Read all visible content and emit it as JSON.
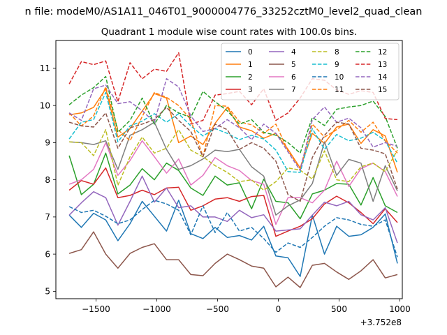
{
  "chart_data": {
    "type": "line",
    "suptitle": "n file: modeM0/AS1A11_046T01_9000004776_33252cztM0_level2_quad_clean",
    "title": "Quadrant 1 module wise count rates with 100.0s bins.",
    "xlabel": "",
    "ylabel": "",
    "x_offset_label": "+3.752e8",
    "xlim": [
      -1830,
      1020
    ],
    "ylim": [
      4.8,
      11.75
    ],
    "xticks": [
      -1500,
      -1000,
      -500,
      0,
      500,
      1000
    ],
    "xtick_labels": [
      "−1500",
      "−1000",
      "−500",
      "0",
      "500",
      "1000"
    ],
    "yticks": [
      5,
      6,
      7,
      8,
      9,
      10,
      11
    ],
    "ytick_labels": [
      "5",
      "6",
      "7",
      "8",
      "9",
      "10",
      "11"
    ],
    "grid": false,
    "legend": {
      "position": "top-right",
      "columns": 4
    },
    "x": [
      -1720,
      -1620,
      -1520,
      -1420,
      -1320,
      -1220,
      -1120,
      -1020,
      -920,
      -820,
      -720,
      -620,
      -520,
      -420,
      -320,
      -220,
      -120,
      -20,
      80,
      180,
      280,
      380,
      480,
      580,
      680,
      780,
      880,
      980
    ],
    "series": [
      {
        "name": "0",
        "color": "#1f77b4",
        "dash": "solid",
        "values": [
          7.05,
          6.72,
          7.1,
          6.92,
          6.36,
          6.82,
          7.42,
          7.02,
          6.62,
          7.45,
          6.55,
          6.42,
          6.72,
          6.45,
          6.5,
          6.38,
          6.75,
          5.95,
          5.9,
          5.4,
          7.05,
          6.0,
          6.75,
          6.48,
          6.52,
          6.72,
          7.08,
          5.75
        ]
      },
      {
        "name": "1",
        "color": "#ff7f0e",
        "dash": "solid",
        "values": [
          9.75,
          9.8,
          9.95,
          10.45,
          9.15,
          9.38,
          9.85,
          10.32,
          10.2,
          9.0,
          9.18,
          8.95,
          9.52,
          9.95,
          9.42,
          9.32,
          9.12,
          9.25,
          8.82,
          8.32,
          9.25,
          8.98,
          9.42,
          9.5,
          8.98,
          9.35,
          9.18,
          8.2
        ]
      },
      {
        "name": "2",
        "color": "#2ca02c",
        "dash": "solid",
        "values": [
          8.65,
          7.6,
          7.88,
          8.72,
          7.62,
          7.86,
          8.3,
          8.0,
          8.45,
          8.25,
          7.78,
          7.58,
          8.1,
          7.86,
          7.92,
          7.22,
          8.02,
          7.42,
          7.38,
          6.95,
          7.62,
          7.72,
          7.9,
          7.88,
          7.32,
          8.06,
          7.3,
          7.12
        ]
      },
      {
        "name": "3",
        "color": "#d62728",
        "dash": "solid",
        "values": [
          7.72,
          7.98,
          7.88,
          8.32,
          7.52,
          7.58,
          7.72,
          7.6,
          7.78,
          7.8,
          7.18,
          7.3,
          7.48,
          7.52,
          7.42,
          7.55,
          7.58,
          6.48,
          6.62,
          6.75,
          6.95,
          7.35,
          7.56,
          7.38,
          7.12,
          6.82,
          7.22,
          6.85
        ]
      },
      {
        "name": "4",
        "color": "#9467bd",
        "dash": "solid",
        "values": [
          7.05,
          7.38,
          7.68,
          7.52,
          6.78,
          7.42,
          8.1,
          7.4,
          7.78,
          7.25,
          7.3,
          7.0,
          7.0,
          6.88,
          7.18,
          6.98,
          7.06,
          6.62,
          6.65,
          6.68,
          7.05,
          7.4,
          7.3,
          7.42,
          7.06,
          6.92,
          7.25,
          6.3
        ]
      },
      {
        "name": "5",
        "color": "#8c564b",
        "dash": "solid",
        "values": [
          6.02,
          6.12,
          6.6,
          6.0,
          5.62,
          6.02,
          6.18,
          6.28,
          5.85,
          5.85,
          5.45,
          5.42,
          5.75,
          6.0,
          5.85,
          5.68,
          5.62,
          5.12,
          5.38,
          5.1,
          5.7,
          5.75,
          5.52,
          5.32,
          5.55,
          5.85,
          5.36,
          5.45
        ]
      },
      {
        "name": "6",
        "color": "#e377c2",
        "dash": "solid",
        "values": [
          7.88,
          8.0,
          8.28,
          9.0,
          8.12,
          8.52,
          9.05,
          8.62,
          8.18,
          8.56,
          7.86,
          8.12,
          8.6,
          8.38,
          8.25,
          7.98,
          7.88,
          6.8,
          7.52,
          7.52,
          7.38,
          7.72,
          8.5,
          7.82,
          8.3,
          8.45,
          8.22,
          7.55
        ]
      },
      {
        "name": "7",
        "color": "#7f7f7f",
        "dash": "solid",
        "values": [
          9.02,
          9.0,
          8.95,
          9.05,
          8.28,
          9.2,
          9.35,
          9.55,
          8.82,
          8.28,
          8.38,
          8.56,
          8.8,
          8.76,
          8.82,
          8.35,
          8.1,
          7.05,
          7.3,
          7.46,
          7.9,
          9.02,
          8.12,
          8.55,
          8.45,
          7.42,
          8.38,
          7.7
        ]
      },
      {
        "name": "8",
        "color": "#bcbd22",
        "dash": "dashed",
        "values": [
          9.02,
          9.0,
          8.65,
          9.35,
          7.85,
          8.62,
          9.15,
          8.72,
          8.85,
          9.35,
          8.8,
          8.62,
          8.38,
          8.2,
          7.95,
          8.0,
          7.72,
          7.95,
          8.32,
          8.26,
          8.02,
          8.78,
          8.0,
          7.95,
          8.35,
          8.45,
          8.22,
          8.8
        ]
      },
      {
        "name": "9",
        "color": "#17becf",
        "dash": "dashed",
        "values": [
          9.1,
          9.55,
          9.62,
          10.35,
          9.02,
          9.45,
          9.58,
          9.78,
          9.55,
          9.78,
          9.45,
          9.18,
          9.38,
          9.25,
          9.08,
          9.2,
          9.1,
          8.8,
          8.22,
          8.2,
          9.38,
          8.82,
          9.22,
          9.05,
          9.12,
          9.28,
          9.05,
          8.45
        ]
      },
      {
        "name": "10",
        "color": "#1f77b4",
        "dash": "dashed",
        "values": [
          7.28,
          7.12,
          7.18,
          7.02,
          6.82,
          6.92,
          7.2,
          7.45,
          7.35,
          7.18,
          6.52,
          7.3,
          6.58,
          7.12,
          6.62,
          6.72,
          6.42,
          6.05,
          6.3,
          6.18,
          6.45,
          6.75,
          6.98,
          6.92,
          6.8,
          6.75,
          6.92,
          5.92
        ]
      },
      {
        "name": "11",
        "color": "#ff7f0e",
        "dash": "dashed",
        "values": [
          9.8,
          9.45,
          9.72,
          10.5,
          9.35,
          9.05,
          9.7,
          10.35,
          10.22,
          10.0,
          9.62,
          8.62,
          10.0,
          9.98,
          9.56,
          9.48,
          9.25,
          9.5,
          8.78,
          8.3,
          9.5,
          9.15,
          9.35,
          9.6,
          9.28,
          9.55,
          9.05,
          8.72
        ]
      },
      {
        "name": "12",
        "color": "#2ca02c",
        "dash": "dashed",
        "values": [
          10.02,
          10.28,
          10.48,
          10.78,
          9.28,
          9.6,
          10.2,
          9.5,
          10.0,
          9.8,
          9.68,
          10.38,
          10.1,
          9.86,
          9.5,
          9.62,
          9.28,
          9.2,
          9.0,
          8.72,
          9.68,
          9.46,
          9.9,
          9.96,
          10.0,
          10.12,
          9.7,
          8.85
        ]
      },
      {
        "name": "13",
        "color": "#d62728",
        "dash": "dashed",
        "values": [
          10.58,
          11.18,
          11.1,
          11.2,
          10.1,
          11.15,
          10.72,
          10.98,
          10.92,
          11.42,
          9.5,
          9.6,
          10.28,
          10.32,
          10.38,
          10.02,
          10.45,
          9.6,
          9.8,
          10.2,
          10.72,
          10.68,
          10.42,
          10.3,
          10.4,
          10.35,
          9.65,
          9.62
        ]
      },
      {
        "name": "14",
        "color": "#9467bd",
        "dash": "dashed",
        "values": [
          9.8,
          9.6,
          10.45,
          10.55,
          10.05,
          10.1,
          9.86,
          9.55,
          10.72,
          10.5,
          9.72,
          9.3,
          9.38,
          9.62,
          9.4,
          9.08,
          9.5,
          9.25,
          8.75,
          8.25,
          9.62,
          9.96,
          9.55,
          9.66,
          9.4,
          8.88,
          9.0,
          8.9
        ]
      },
      {
        "name": "15",
        "color": "#8c564b",
        "dash": "dashed",
        "values": [
          9.55,
          9.45,
          9.42,
          9.8,
          8.85,
          9.4,
          9.5,
          9.62,
          9.95,
          9.6,
          9.3,
          8.62,
          9.5,
          9.35,
          8.82,
          9.0,
          8.85,
          8.5,
          7.6,
          7.42,
          8.6,
          9.2,
          9.55,
          9.5,
          8.85,
          8.8,
          8.7,
          7.75
        ]
      }
    ]
  }
}
